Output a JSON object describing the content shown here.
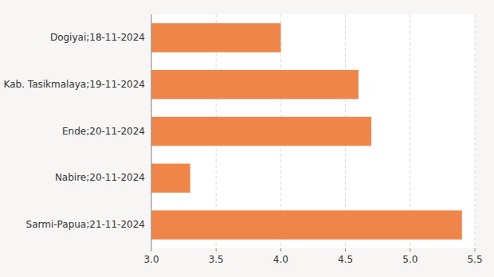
{
  "chart_data": {
    "type": "bar",
    "orientation": "horizontal",
    "categories": [
      "Sarmi-Papua;21-11-2024",
      "Nabire;20-11-2024",
      "Ende;20-11-2024",
      "Kab. Tasikmalaya;19-11-2024",
      "Dogiyai;18-11-2024"
    ],
    "values": [
      5.4,
      3.3,
      4.7,
      4.6,
      4.0
    ],
    "color": "#f0854a",
    "xlim": [
      3.0,
      5.5
    ],
    "xticks": [
      {
        "value": 3.0,
        "label": "3.0"
      },
      3.5,
      {
        "value": 4.0,
        "label": "4.0"
      },
      4.5,
      {
        "value": 5.0,
        "label": "5.0"
      },
      5.5
    ],
    "grid": true
  }
}
